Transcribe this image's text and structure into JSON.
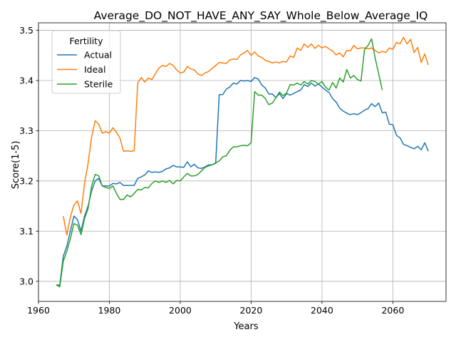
{
  "chart_data": {
    "type": "line",
    "title": "Average_DO_NOT_HAVE_ANY_SAY_Whole_Below_Average_IQ",
    "xlabel": "Years",
    "ylabel": "Score(1-5)",
    "xlim": [
      1960,
      2075
    ],
    "ylim": [
      2.96,
      3.515
    ],
    "xticks": [
      1960,
      1980,
      2000,
      2020,
      2040,
      2060
    ],
    "yticks": [
      3.0,
      3.1,
      3.2,
      3.3,
      3.4,
      3.5
    ],
    "xtick_labels": [
      "1960",
      "1980",
      "2000",
      "2020",
      "2040",
      "2060"
    ],
    "ytick_labels": [
      "3.0",
      "3.1",
      "3.2",
      "3.3",
      "3.4",
      "3.5"
    ],
    "grid": true,
    "legend": {
      "title": "Fertility",
      "placement": "top-left"
    },
    "series": [
      {
        "name": "Actual",
        "color": "#1f77b4",
        "x": [
          1965,
          1966,
          1967,
          1968,
          1969,
          1970,
          1971,
          1972,
          1973,
          1974,
          1975,
          1976,
          1977,
          1978,
          1979,
          1980,
          1981,
          1982,
          1983,
          1984,
          1985,
          1986,
          1987,
          1988,
          1989,
          1990,
          1991,
          1992,
          1993,
          1994,
          1995,
          1996,
          1997,
          1998,
          1999,
          2000,
          2001,
          2002,
          2003,
          2004,
          2005,
          2006,
          2007,
          2008,
          2009,
          2010,
          2011,
          2012,
          2013,
          2014,
          2015,
          2016,
          2017,
          2018,
          2019,
          2020,
          2021,
          2022,
          2023,
          2024,
          2025,
          2026,
          2027,
          2028,
          2029,
          2030,
          2031,
          2032,
          2033,
          2034,
          2035,
          2036,
          2037,
          2038,
          2039,
          2040,
          2041,
          2042,
          2043,
          2044,
          2045,
          2046,
          2047,
          2048,
          2049,
          2050,
          2051,
          2052,
          2053,
          2054,
          2055,
          2056,
          2057,
          2058,
          2059,
          2060,
          2061,
          2062,
          2063,
          2064,
          2065,
          2066,
          2067,
          2068,
          2069,
          2070
        ],
        "y": [
          2.993,
          2.992,
          3.05,
          3.07,
          3.1,
          3.13,
          3.123,
          3.1,
          3.13,
          3.15,
          3.18,
          3.2,
          3.205,
          3.19,
          3.19,
          3.19,
          3.195,
          3.194,
          3.197,
          3.191,
          3.191,
          3.191,
          3.191,
          3.205,
          3.208,
          3.212,
          3.22,
          3.217,
          3.218,
          3.217,
          3.219,
          3.224,
          3.226,
          3.231,
          3.228,
          3.228,
          3.227,
          3.238,
          3.228,
          3.233,
          3.226,
          3.225,
          3.228,
          3.232,
          3.232,
          3.235,
          3.372,
          3.372,
          3.383,
          3.387,
          3.395,
          3.393,
          3.4,
          3.399,
          3.4,
          3.398,
          3.406,
          3.403,
          3.391,
          3.385,
          3.373,
          3.373,
          3.366,
          3.374,
          3.364,
          3.374,
          3.371,
          3.374,
          3.378,
          3.381,
          3.392,
          3.388,
          3.395,
          3.389,
          3.393,
          3.387,
          3.381,
          3.376,
          3.364,
          3.357,
          3.345,
          3.339,
          3.335,
          3.332,
          3.334,
          3.332,
          3.336,
          3.341,
          3.344,
          3.354,
          3.348,
          3.355,
          3.336,
          3.337,
          3.313,
          3.312,
          3.291,
          3.286,
          3.273,
          3.27,
          3.267,
          3.264,
          3.269,
          3.262,
          3.276,
          3.259
        ]
      },
      {
        "name": "Ideal",
        "color": "#ff7f0e",
        "x": [
          1967,
          1968,
          1969,
          1970,
          1971,
          1972,
          1973,
          1974,
          1975,
          1976,
          1977,
          1978,
          1979,
          1980,
          1981,
          1982,
          1983,
          1984,
          1985,
          1986,
          1987,
          1988,
          1989,
          1990,
          1991,
          1992,
          1993,
          1994,
          1995,
          1996,
          1997,
          1998,
          1999,
          2000,
          2001,
          2002,
          2003,
          2004,
          2005,
          2006,
          2007,
          2008,
          2009,
          2010,
          2011,
          2012,
          2013,
          2014,
          2015,
          2016,
          2017,
          2018,
          2019,
          2020,
          2021,
          2022,
          2023,
          2024,
          2025,
          2026,
          2027,
          2028,
          2029,
          2030,
          2031,
          2032,
          2033,
          2034,
          2035,
          2036,
          2037,
          2038,
          2039,
          2040,
          2041,
          2042,
          2043,
          2044,
          2045,
          2046,
          2047,
          2048,
          2049,
          2050,
          2051,
          2052,
          2053,
          2054,
          2055,
          2056,
          2057,
          2058,
          2059,
          2060,
          2061,
          2062,
          2063,
          2064,
          2065,
          2066,
          2067,
          2068,
          2069,
          2070
        ],
        "y": [
          3.13,
          3.092,
          3.128,
          3.152,
          3.16,
          3.135,
          3.195,
          3.235,
          3.288,
          3.32,
          3.313,
          3.295,
          3.298,
          3.295,
          3.306,
          3.297,
          3.285,
          3.259,
          3.26,
          3.259,
          3.26,
          3.395,
          3.406,
          3.397,
          3.405,
          3.402,
          3.414,
          3.425,
          3.43,
          3.428,
          3.434,
          3.43,
          3.421,
          3.415,
          3.417,
          3.428,
          3.423,
          3.421,
          3.413,
          3.41,
          3.415,
          3.418,
          3.424,
          3.43,
          3.436,
          3.435,
          3.434,
          3.441,
          3.443,
          3.442,
          3.451,
          3.455,
          3.46,
          3.45,
          3.457,
          3.449,
          3.446,
          3.44,
          3.438,
          3.435,
          3.437,
          3.435,
          3.438,
          3.437,
          3.449,
          3.446,
          3.465,
          3.46,
          3.473,
          3.466,
          3.473,
          3.464,
          3.47,
          3.465,
          3.468,
          3.463,
          3.459,
          3.451,
          3.455,
          3.447,
          3.46,
          3.459,
          3.47,
          3.463,
          3.465,
          3.465,
          3.463,
          3.465,
          3.46,
          3.455,
          3.458,
          3.456,
          3.465,
          3.462,
          3.476,
          3.473,
          3.486,
          3.473,
          3.482,
          3.456,
          3.466,
          3.436,
          3.453,
          3.431
        ]
      },
      {
        "name": "Sterile",
        "color": "#2ca02c",
        "x": [
          1965,
          1966,
          1967,
          1968,
          1969,
          1970,
          1971,
          1972,
          1973,
          1974,
          1975,
          1976,
          1977,
          1978,
          1979,
          1980,
          1981,
          1982,
          1983,
          1984,
          1985,
          1986,
          1987,
          1988,
          1989,
          1990,
          1991,
          1992,
          1993,
          1994,
          1995,
          1996,
          1997,
          1998,
          1999,
          2000,
          2001,
          2002,
          2003,
          2004,
          2005,
          2006,
          2007,
          2008,
          2009,
          2010,
          2011,
          2012,
          2013,
          2014,
          2015,
          2016,
          2017,
          2018,
          2019,
          2020,
          2021,
          2022,
          2023,
          2024,
          2025,
          2026,
          2027,
          2028,
          2029,
          2030,
          2031,
          2032,
          2033,
          2034,
          2035,
          2036,
          2037,
          2038,
          2039,
          2040,
          2041,
          2042,
          2043,
          2044,
          2045,
          2046,
          2047,
          2048,
          2049,
          2050,
          2051,
          2052,
          2053,
          2054,
          2055,
          2056,
          2057
        ],
        "y": [
          2.993,
          2.989,
          3.04,
          3.06,
          3.085,
          3.115,
          3.112,
          3.093,
          3.125,
          3.145,
          3.19,
          3.213,
          3.21,
          3.19,
          3.187,
          3.185,
          3.19,
          3.175,
          3.163,
          3.163,
          3.172,
          3.168,
          3.175,
          3.183,
          3.182,
          3.187,
          3.186,
          3.195,
          3.2,
          3.197,
          3.2,
          3.197,
          3.201,
          3.194,
          3.201,
          3.2,
          3.208,
          3.215,
          3.21,
          3.21,
          3.213,
          3.22,
          3.227,
          3.23,
          3.232,
          3.236,
          3.24,
          3.248,
          3.25,
          3.261,
          3.268,
          3.268,
          3.27,
          3.271,
          3.27,
          3.276,
          3.378,
          3.371,
          3.371,
          3.364,
          3.352,
          3.355,
          3.366,
          3.377,
          3.37,
          3.375,
          3.392,
          3.391,
          3.395,
          3.391,
          3.398,
          3.393,
          3.4,
          3.398,
          3.393,
          3.398,
          3.387,
          3.381,
          3.396,
          3.385,
          3.405,
          3.397,
          3.422,
          3.405,
          3.41,
          3.402,
          3.399,
          3.462,
          3.47,
          3.483,
          3.445,
          3.413,
          3.381
        ]
      }
    ]
  }
}
